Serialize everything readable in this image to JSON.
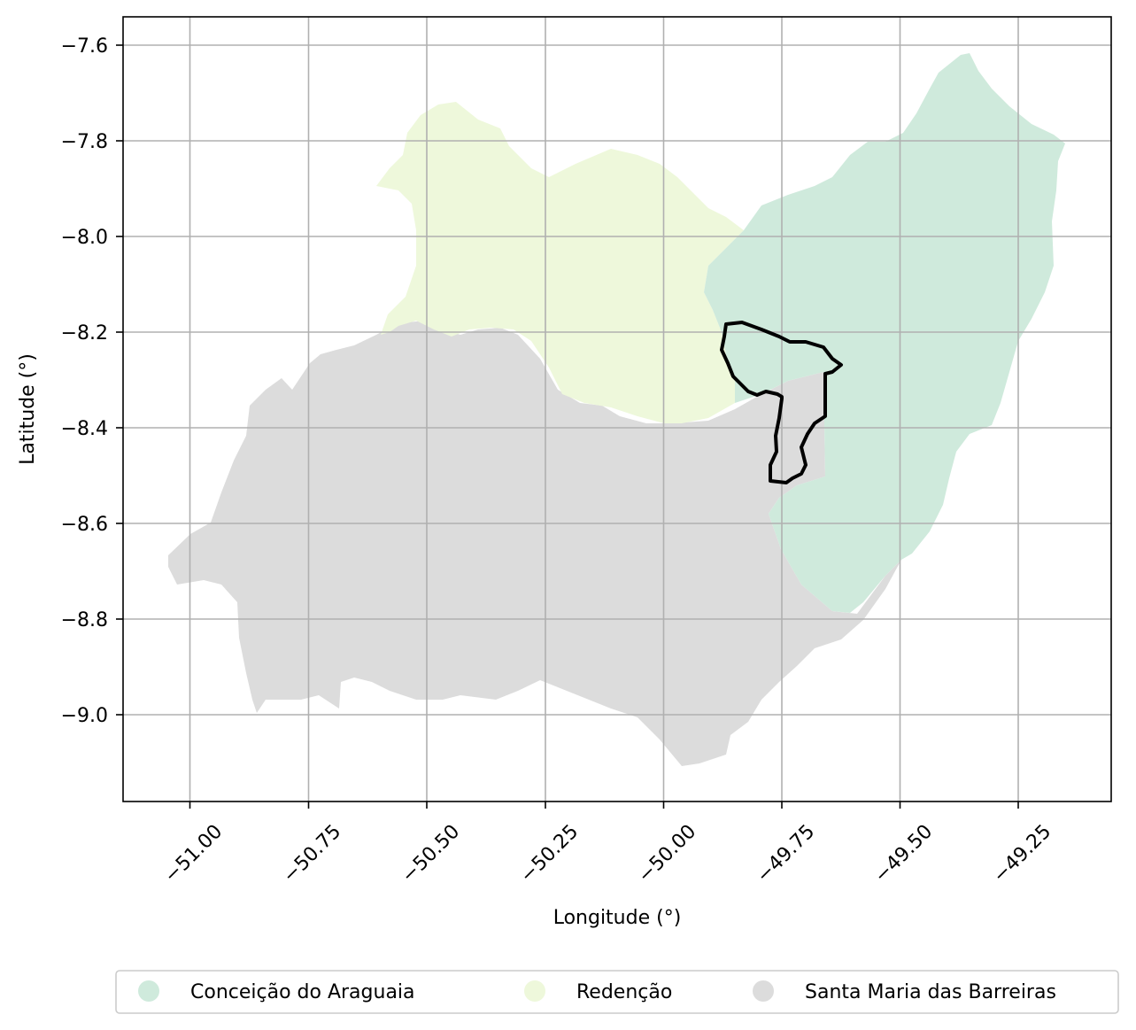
{
  "map": {
    "xlabel": "Longitude (°)",
    "ylabel": "Latitude (°)",
    "x_ticks": [
      "−51.00",
      "−50.75",
      "−50.50",
      "−50.25",
      "−50.00",
      "−49.75",
      "−49.50",
      "−49.25"
    ],
    "y_ticks": [
      "−7.6",
      "−7.8",
      "−8.0",
      "−8.2",
      "−8.4",
      "−8.6",
      "−8.8",
      "−9.0"
    ],
    "grid": true,
    "legend_position": "bottom",
    "regions": [
      {
        "name": "Conceição do Araguaia",
        "color": "#cfeadc"
      },
      {
        "name": "Redenção",
        "color": "#eef8db"
      },
      {
        "name": "Santa Maria das Barreiras",
        "color": "#dcdcdc"
      }
    ],
    "highlight_outline": {
      "color": "#000000"
    }
  }
}
